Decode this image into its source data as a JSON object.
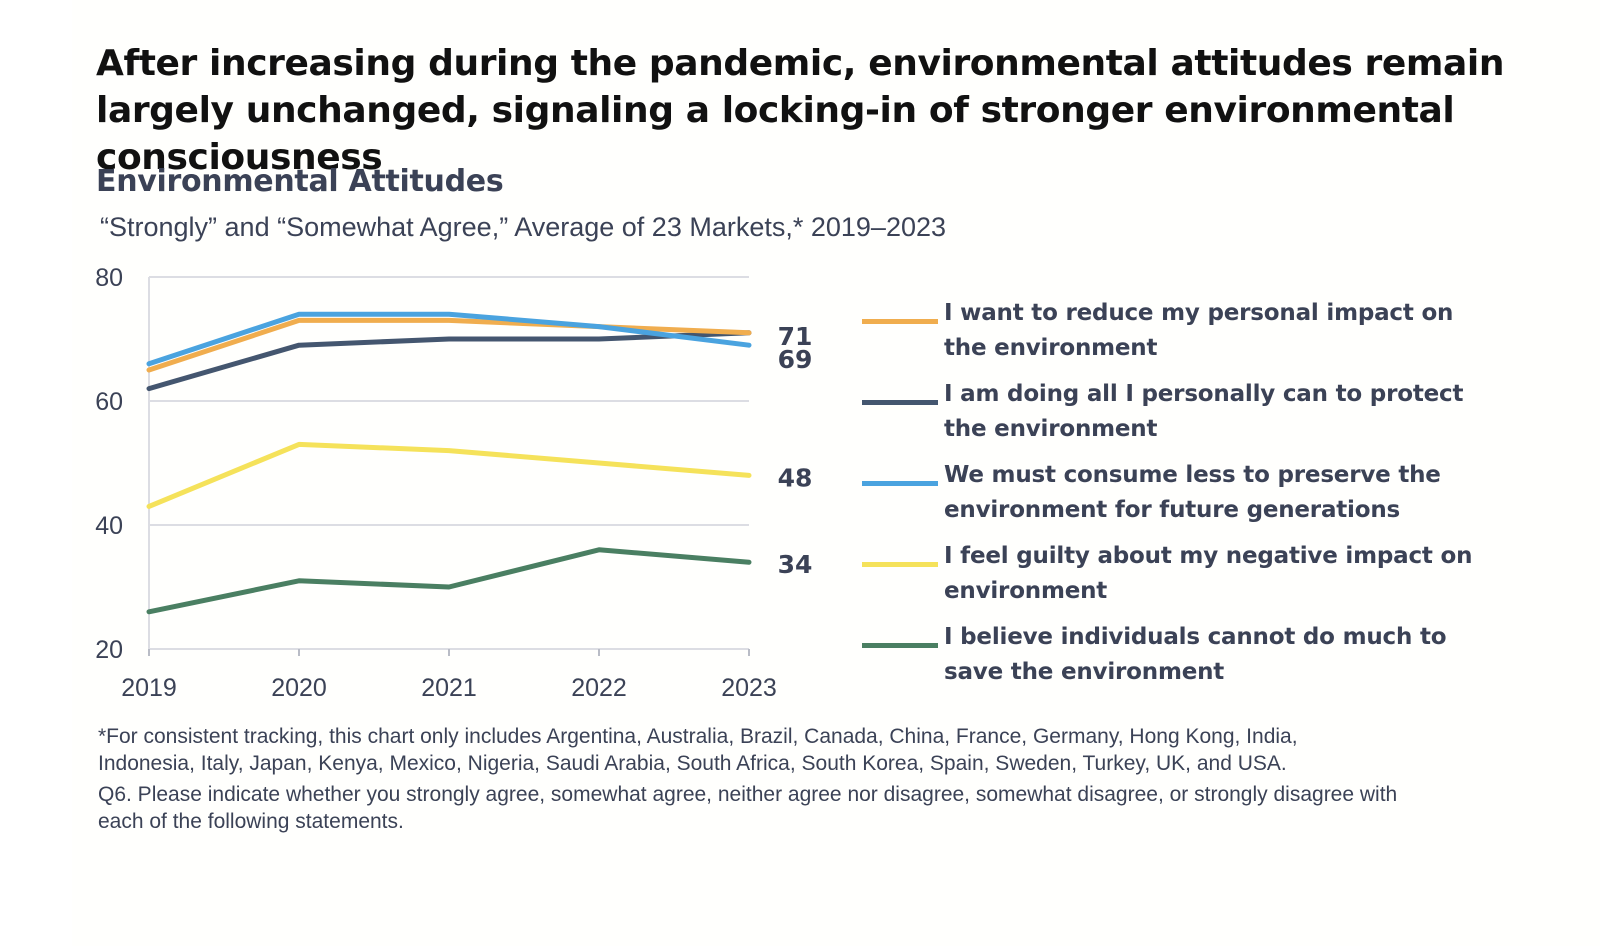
{
  "headline": "After increasing during the pandemic, environmental attitudes remain largely unchanged, signaling a locking-in of stronger environmental consciousness",
  "footnotes": {
    "markets": "*For consistent tracking, this chart only includes Argentina, Australia, Brazil, Canada, China, France, Germany, Hong Kong, India, Indonesia, Italy, Japan, Kenya, Mexico, Nigeria, Saudi Arabia, South Africa, South Korea, Spain, Sweden, Turkey, UK, and USA.",
    "question": "Q6. Please indicate whether you strongly agree, somewhat agree, neither agree nor disagree, somewhat disagree, or strongly disagree with each of the following statements."
  },
  "chart_data": {
    "type": "line",
    "title": "Environmental Attitudes",
    "subtitle": "“Strongly” and “Somewhat Agree,” Average of 23 Markets,* 2019–2023",
    "x": [
      "2019",
      "2020",
      "2021",
      "2022",
      "2023"
    ],
    "ylim": [
      20,
      80
    ],
    "yticks": [
      20,
      40,
      60,
      80
    ],
    "grid": true,
    "legend_position": "right",
    "series": [
      {
        "name": "I want to reduce my personal impact on the environment",
        "color": "#f0ad4e",
        "values": [
          65,
          73,
          73,
          72,
          71
        ],
        "end_label": ""
      },
      {
        "name": "I am doing all I personally can to protect the environment",
        "color": "#44566f",
        "values": [
          62,
          69,
          70,
          70,
          71
        ],
        "end_label": "71"
      },
      {
        "name": "We must consume less to preserve the environment for future generations",
        "color": "#4aa3df",
        "values": [
          66,
          74,
          74,
          72,
          69
        ],
        "end_label": "69"
      },
      {
        "name": "I feel guilty about my negative impact on environment",
        "color": "#f5e25a",
        "values": [
          43,
          53,
          52,
          50,
          48
        ],
        "end_label": "48"
      },
      {
        "name": "I believe individuals cannot do much to save the environment",
        "color": "#4a7f62",
        "values": [
          26,
          31,
          30,
          36,
          34
        ],
        "end_label": "34"
      }
    ]
  }
}
